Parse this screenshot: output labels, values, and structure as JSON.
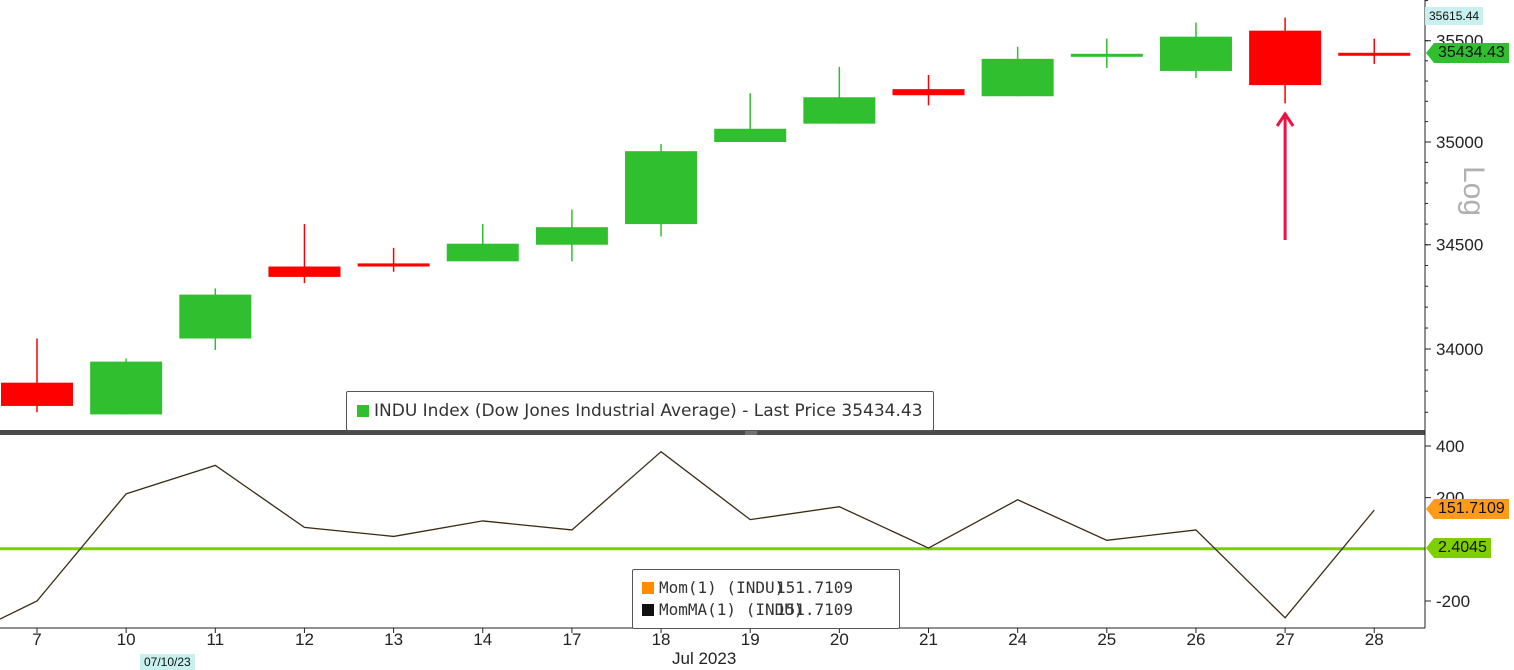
{
  "chart_data": [
    {
      "type": "candlestick",
      "legend": "INDU Index (Dow Jones Industrial Average) - Last Price 35434.43",
      "scale": "Log",
      "categories": [
        "7",
        "10",
        "11",
        "12",
        "13",
        "14",
        "17",
        "18",
        "19",
        "20",
        "21",
        "24",
        "25",
        "26",
        "27",
        "28"
      ],
      "ohlc": [
        {
          "open": 33840,
          "high": 34050,
          "low": 33700,
          "close": 33730
        },
        {
          "open": 33690,
          "high": 33955,
          "low": 33690,
          "close": 33940
        },
        {
          "open": 34050,
          "high": 34290,
          "low": 33995,
          "close": 34260
        },
        {
          "open": 34395,
          "high": 34600,
          "low": 34315,
          "close": 34345
        },
        {
          "open": 34410,
          "high": 34485,
          "low": 34370,
          "close": 34395
        },
        {
          "open": 34420,
          "high": 34600,
          "low": 34420,
          "close": 34505
        },
        {
          "open": 34500,
          "high": 34670,
          "low": 34420,
          "close": 34585
        },
        {
          "open": 34600,
          "high": 34990,
          "low": 34540,
          "close": 34955
        },
        {
          "open": 35000,
          "high": 35240,
          "low": 35000,
          "close": 35065
        },
        {
          "open": 35090,
          "high": 35370,
          "low": 35090,
          "close": 35220
        },
        {
          "open": 35260,
          "high": 35330,
          "low": 35180,
          "close": 35230
        },
        {
          "open": 35225,
          "high": 35470,
          "low": 35225,
          "close": 35410
        },
        {
          "open": 35420,
          "high": 35510,
          "low": 35365,
          "close": 35435
        },
        {
          "open": 35350,
          "high": 35590,
          "low": 35315,
          "close": 35520
        },
        {
          "open": 35550,
          "high": 35615,
          "low": 35190,
          "close": 35280
        },
        {
          "open": 35440,
          "high": 35510,
          "low": 35385,
          "close": 35434.43
        }
      ],
      "y_ticks": [
        "34000",
        "34500",
        "35000",
        "35500"
      ],
      "ylim": [
        33580,
        35720
      ],
      "last_value_label": "35434.43",
      "high_label": "35615.44",
      "up_color": "#2fbf2f",
      "down_color": "#ff0000"
    },
    {
      "type": "line",
      "series": [
        {
          "name": "Mom(1) (INDU)",
          "color": "#ff8c00",
          "values": [
            -200,
            215,
            325,
            85,
            50,
            110,
            75,
            378,
            115,
            165,
            5,
            192,
            35,
            75,
            -265,
            151.7109
          ]
        },
        {
          "name": "MomMA(1) (INDU)",
          "color": "#000000",
          "values": [
            -200,
            215,
            325,
            85,
            50,
            110,
            75,
            378,
            115,
            165,
            5,
            192,
            35,
            75,
            -265,
            151.7109
          ]
        }
      ],
      "reference_line": 2.4045,
      "reference_label": "2.4045",
      "reference_color": "#7fcf00",
      "last_value_label": "151.7109",
      "legend_values": [
        "151.7109",
        "151.7109"
      ],
      "y_ticks": [
        "400",
        "200",
        "-200"
      ],
      "ylim": [
        -305,
        440
      ]
    }
  ],
  "x_axis": {
    "month_label": "Jul 2023",
    "date_tag": "07/10/23"
  },
  "annotation": {
    "type": "arrow",
    "color": "#ee1144",
    "target_category": "27"
  },
  "scale_label": "Log"
}
